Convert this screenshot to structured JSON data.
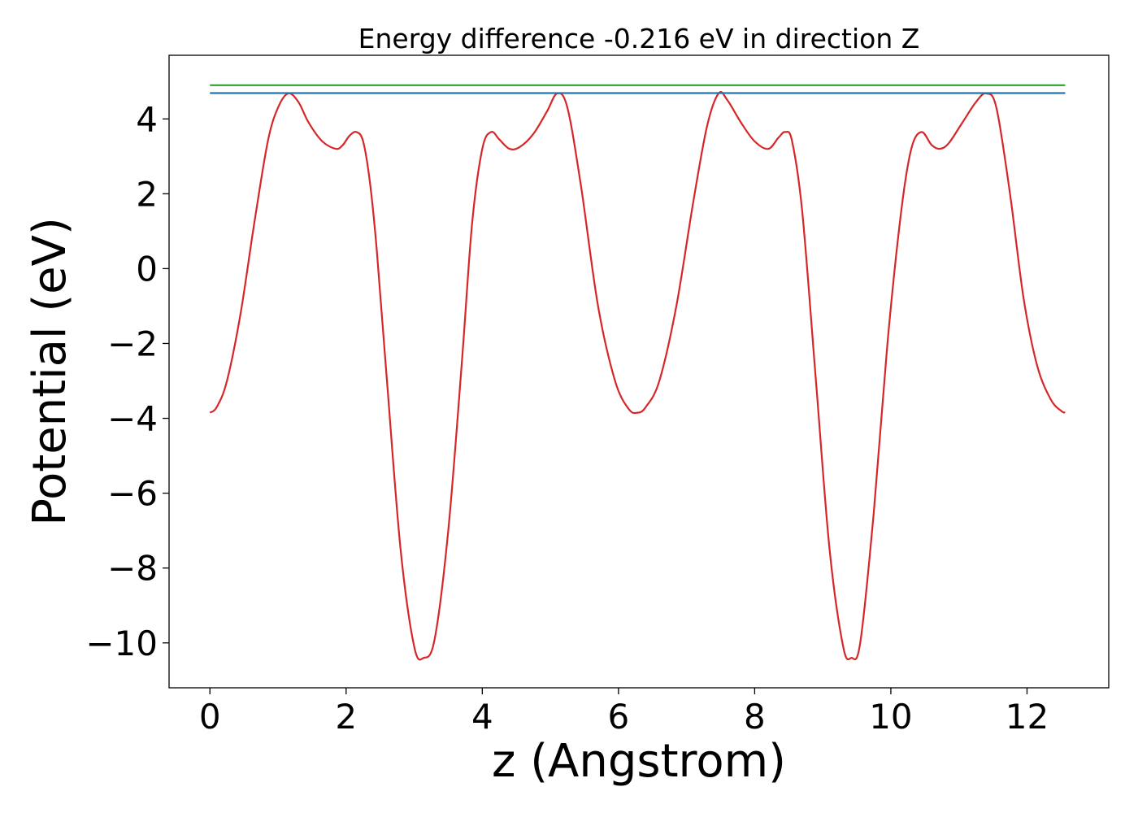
{
  "chart_data": {
    "type": "line",
    "title": "Energy difference -0.216 eV in direction Z",
    "xlabel": "z (Angstrom)",
    "ylabel": "Potential (eV)",
    "xlim": [
      -0.6,
      13.2
    ],
    "ylim": [
      -11.2,
      5.7
    ],
    "xticks": [
      0,
      2,
      4,
      6,
      8,
      10,
      12
    ],
    "yticks": [
      4,
      2,
      0,
      -2,
      -4,
      -6,
      -8,
      -10
    ],
    "xtick_labels": [
      "0",
      "2",
      "4",
      "6",
      "8",
      "10",
      "12"
    ],
    "ytick_labels": [
      "4",
      "2",
      "0",
      "−2",
      "−4",
      "−6",
      "−8",
      "−10"
    ],
    "grid": false,
    "series": [
      {
        "color": "#d62728",
        "x": [
          0.0,
          0.1,
          0.25,
          0.45,
          0.65,
          0.85,
          1.0,
          1.15,
          1.3,
          1.45,
          1.65,
          1.85,
          1.95,
          2.05,
          2.15,
          2.25,
          2.35,
          2.45,
          2.6,
          2.8,
          3.0,
          3.14,
          3.3,
          3.5,
          3.7,
          3.85,
          4.0,
          4.13,
          4.25,
          4.4,
          4.55,
          4.75,
          4.95,
          5.1,
          5.25,
          5.45,
          5.7,
          5.95,
          6.15,
          6.28,
          6.4,
          6.6,
          6.85,
          7.1,
          7.3,
          7.47,
          7.6,
          7.8,
          8.0,
          8.2,
          8.35,
          8.45,
          8.55,
          8.7,
          8.9,
          9.1,
          9.3,
          9.42,
          9.55,
          9.75,
          9.95,
          10.15,
          10.3,
          10.45,
          10.6,
          10.72,
          10.85,
          11.05,
          11.25,
          11.4,
          11.55,
          11.75,
          11.95,
          12.15,
          12.35,
          12.5,
          12.56
        ],
        "values": [
          -3.85,
          -3.7,
          -3.0,
          -1.2,
          1.2,
          3.4,
          4.3,
          4.68,
          4.45,
          3.9,
          3.4,
          3.2,
          3.3,
          3.55,
          3.65,
          3.4,
          2.3,
          0.5,
          -3.0,
          -7.5,
          -10.1,
          -10.4,
          -9.9,
          -7.0,
          -2.5,
          1.2,
          3.2,
          3.65,
          3.45,
          3.2,
          3.25,
          3.6,
          4.2,
          4.68,
          4.3,
          2.2,
          -1.0,
          -3.0,
          -3.75,
          -3.85,
          -3.7,
          -3.0,
          -1.0,
          1.8,
          3.8,
          4.68,
          4.5,
          3.9,
          3.4,
          3.2,
          3.5,
          3.65,
          3.4,
          1.5,
          -3.0,
          -7.5,
          -10.1,
          -10.4,
          -10.0,
          -6.5,
          -2.0,
          1.5,
          3.2,
          3.65,
          3.3,
          3.2,
          3.35,
          3.9,
          4.45,
          4.68,
          4.3,
          2.0,
          -0.8,
          -2.6,
          -3.5,
          -3.8,
          -3.85
        ]
      },
      {
        "color": "#2ca02c",
        "x": [
          0.0,
          12.56
        ],
        "values": [
          4.9,
          4.9
        ]
      },
      {
        "color": "#1f77b4",
        "x": [
          0.0,
          12.56
        ],
        "values": [
          4.69,
          4.69
        ]
      }
    ]
  }
}
